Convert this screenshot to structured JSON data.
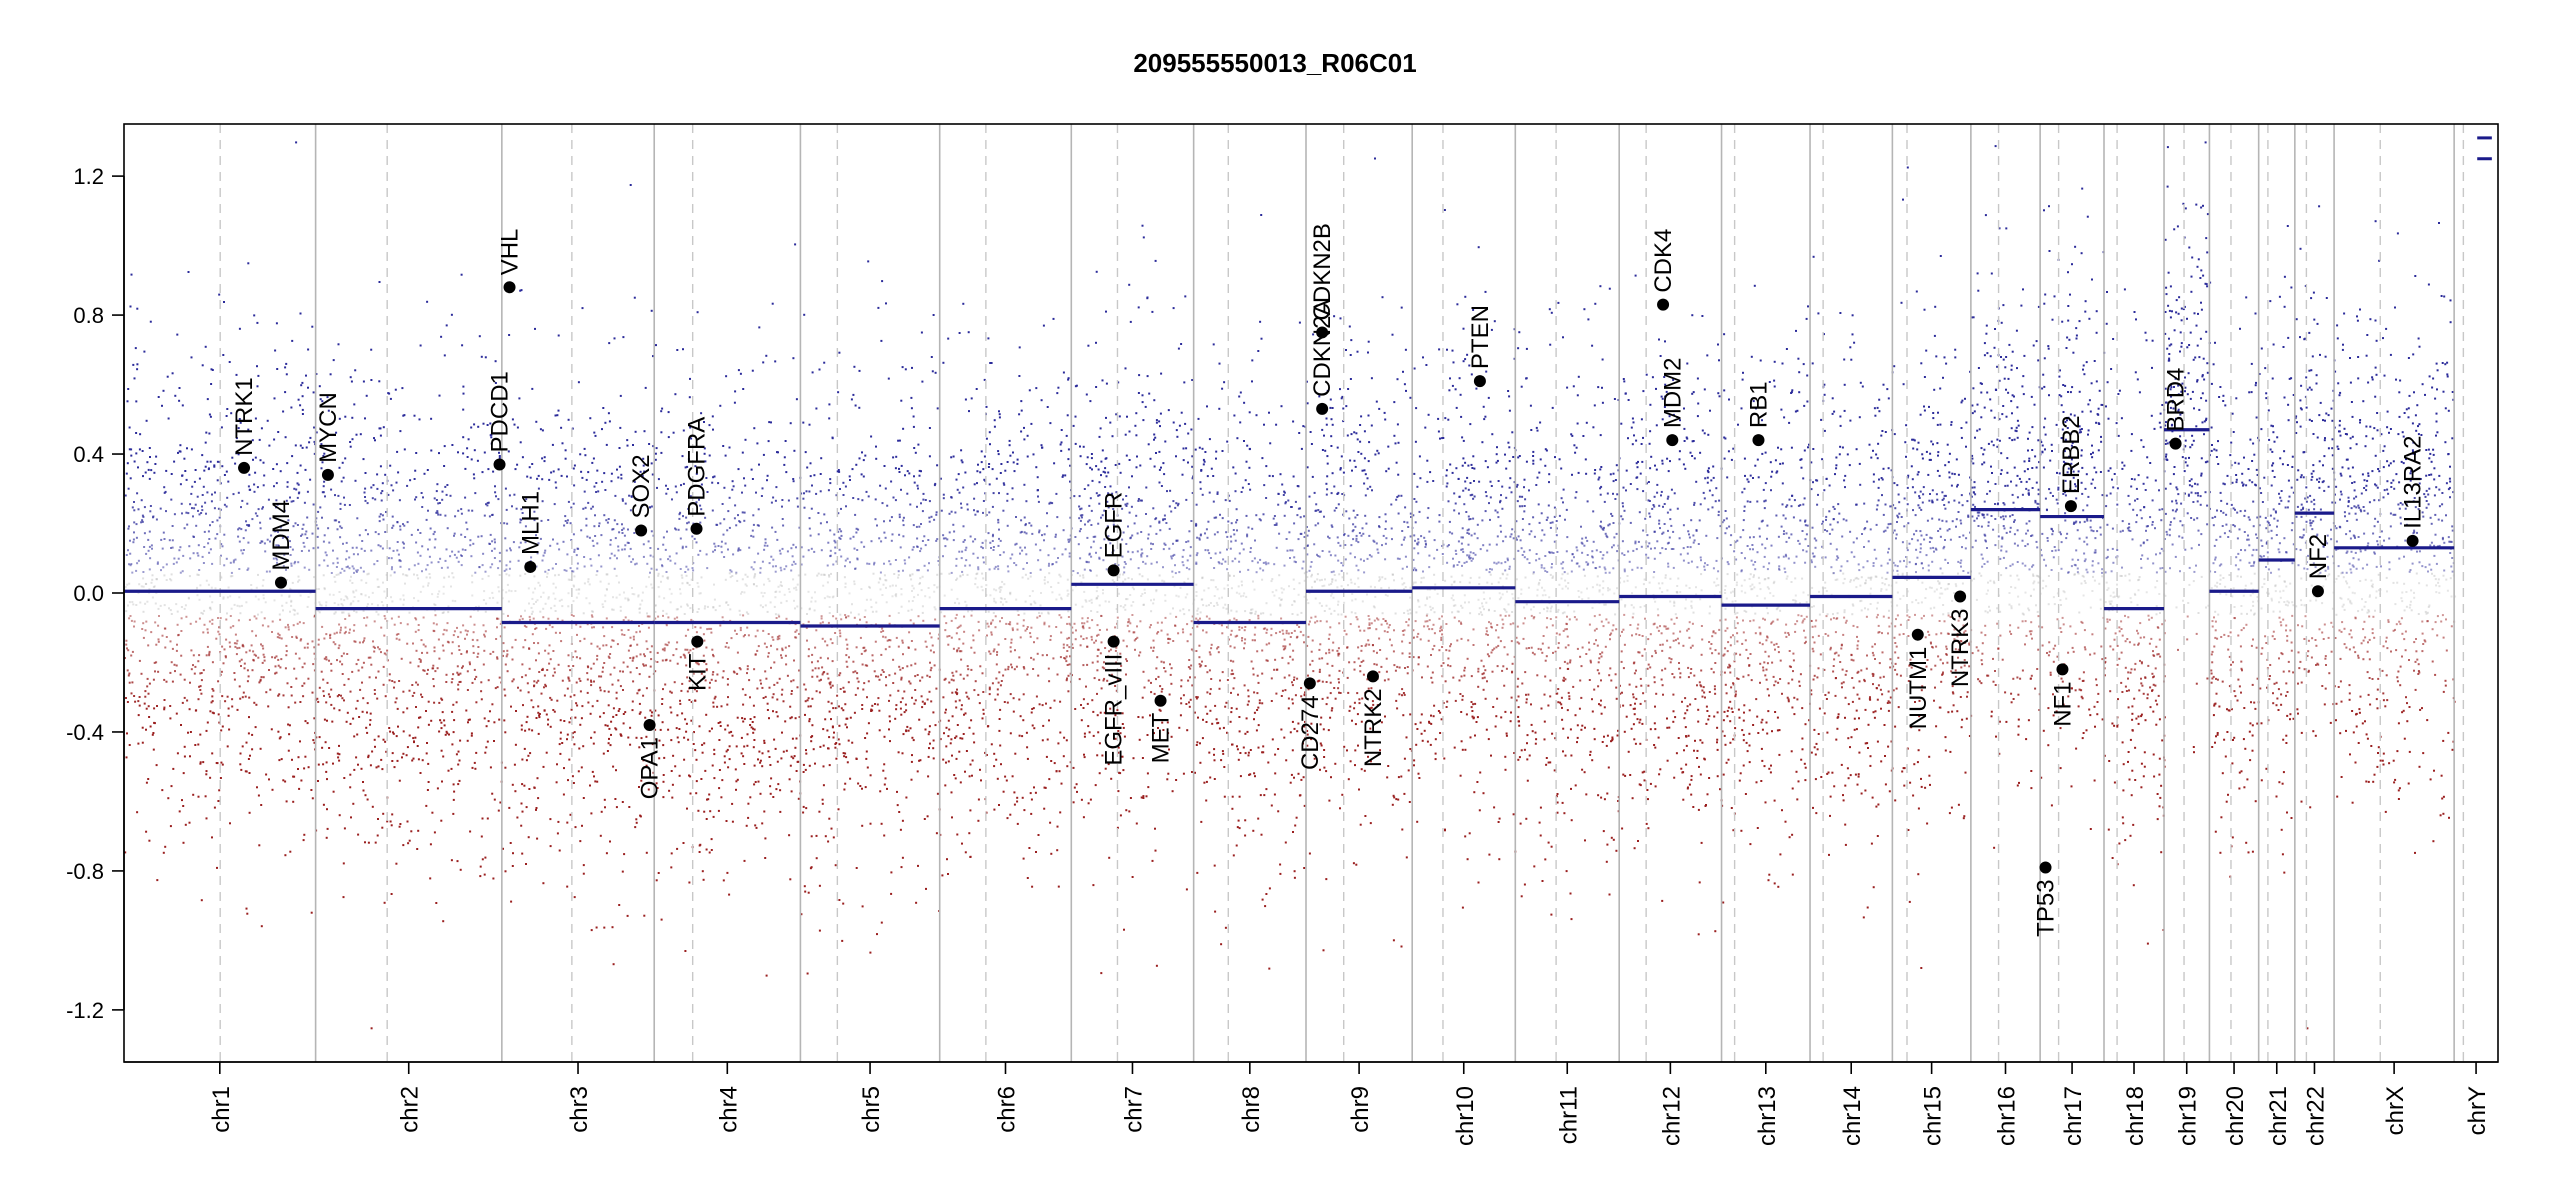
{
  "chart_data": {
    "type": "scatter",
    "title": "209555550013_R06C01",
    "ylim": [
      -1.35,
      1.35
    ],
    "y_ticks": [
      -1.2,
      -0.8,
      -0.4,
      0.0,
      0.4,
      0.8,
      1.2
    ],
    "y_tick_labels": [
      "-1.2",
      "-0.8",
      "-0.4",
      "0.0",
      "0.4",
      "0.8",
      "1.2"
    ],
    "grid": false,
    "point_colors": {
      "gain": "#2b2b9a",
      "loss": "#9a1f1f",
      "neutral": "#b9b9b9"
    },
    "segment_color": "#1a1a8a",
    "chromosomes": [
      {
        "name": "chr1",
        "start": 0,
        "end": 249,
        "centromere": 125,
        "segment": 0.005
      },
      {
        "name": "chr2",
        "start": 249,
        "end": 491,
        "centromere": 342,
        "segment": -0.045
      },
      {
        "name": "chr3",
        "start": 491,
        "end": 689,
        "centromere": 582,
        "segment": -0.085
      },
      {
        "name": "chr4",
        "start": 689,
        "end": 879,
        "centromere": 739,
        "segment": -0.085
      },
      {
        "name": "chr5",
        "start": 879,
        "end": 1060,
        "centromere": 927,
        "segment": -0.095
      },
      {
        "name": "chr6",
        "start": 1060,
        "end": 1231,
        "centromere": 1120,
        "segment": -0.045
      },
      {
        "name": "chr7",
        "start": 1231,
        "end": 1390,
        "centromere": 1291,
        "segment": 0.025
      },
      {
        "name": "chr8",
        "start": 1390,
        "end": 1536,
        "centromere": 1435,
        "segment": -0.085
      },
      {
        "name": "chr9",
        "start": 1536,
        "end": 1674,
        "centromere": 1585,
        "segment": 0.005
      },
      {
        "name": "chr10",
        "start": 1674,
        "end": 1808,
        "centromere": 1714,
        "segment": 0.015
      },
      {
        "name": "chr11",
        "start": 1808,
        "end": 1943,
        "centromere": 1861,
        "segment": -0.025
      },
      {
        "name": "chr12",
        "start": 1943,
        "end": 2076,
        "centromere": 1978,
        "segment": -0.01
      },
      {
        "name": "chr13",
        "start": 2076,
        "end": 2191,
        "centromere": 2093,
        "segment": -0.035
      },
      {
        "name": "chr14",
        "start": 2191,
        "end": 2298,
        "centromere": 2208,
        "segment": -0.01
      },
      {
        "name": "chr15",
        "start": 2298,
        "end": 2400,
        "centromere": 2317,
        "segment": 0.045
      },
      {
        "name": "chr16",
        "start": 2400,
        "end": 2490,
        "centromere": 2436,
        "segment": 0.24
      },
      {
        "name": "chr17",
        "start": 2490,
        "end": 2573,
        "centromere": 2514,
        "segment": 0.22
      },
      {
        "name": "chr18",
        "start": 2573,
        "end": 2651,
        "centromere": 2590,
        "segment": -0.045
      },
      {
        "name": "chr19",
        "start": 2651,
        "end": 2710,
        "centromere": 2677,
        "segment": 0.47
      },
      {
        "name": "chr20",
        "start": 2710,
        "end": 2774,
        "centromere": 2738,
        "segment": 0.005
      },
      {
        "name": "chr21",
        "start": 2774,
        "end": 2821,
        "centromere": 2786,
        "segment": 0.095
      },
      {
        "name": "chr22",
        "start": 2821,
        "end": 2872,
        "centromere": 2836,
        "segment": 0.23
      },
      {
        "name": "chrX",
        "start": 2872,
        "end": 3028,
        "centromere": 2932,
        "segment": 0.13
      },
      {
        "name": "chrY",
        "start": 3028,
        "end": 3085,
        "centromere": 3040,
        "segment": null
      }
    ],
    "chrY_marks": [
      1.31,
      1.25
    ],
    "genes": [
      {
        "name": "NTRK1",
        "pos": 156,
        "value": 0.36,
        "label_side": "above"
      },
      {
        "name": "MDM4",
        "pos": 204,
        "value": 0.03,
        "label_side": "above"
      },
      {
        "name": "MYCN",
        "pos": 265,
        "value": 0.34,
        "label_side": "above"
      },
      {
        "name": "PDCD1",
        "pos": 488,
        "value": 0.37,
        "label_side": "above"
      },
      {
        "name": "VHL",
        "pos": 501,
        "value": 0.88,
        "label_side": "above"
      },
      {
        "name": "MLH1",
        "pos": 528,
        "value": 0.075,
        "label_side": "above"
      },
      {
        "name": "SOX2",
        "pos": 672,
        "value": 0.18,
        "label_side": "above"
      },
      {
        "name": "OPA1",
        "pos": 683,
        "value": -0.38,
        "label_side": "below"
      },
      {
        "name": "PDGFRA",
        "pos": 744,
        "value": 0.185,
        "label_side": "above"
      },
      {
        "name": "KIT",
        "pos": 745,
        "value": -0.14,
        "label_side": "below"
      },
      {
        "name": "EGFR",
        "pos": 1286,
        "value": 0.065,
        "label_side": "above"
      },
      {
        "name": "EGFR_vIII",
        "pos": 1286,
        "value": -0.14,
        "label_side": "below"
      },
      {
        "name": "MET",
        "pos": 1347,
        "value": -0.31,
        "label_side": "below"
      },
      {
        "name": "CD274",
        "pos": 1541,
        "value": -0.26,
        "label_side": "below"
      },
      {
        "name": "CDKN2A",
        "pos": 1557,
        "value": 0.53,
        "label_side": "above"
      },
      {
        "name": "CDKN2B",
        "pos": 1557,
        "value": 0.75,
        "label_side": "above"
      },
      {
        "name": "NTRK2",
        "pos": 1623,
        "value": -0.24,
        "label_side": "below"
      },
      {
        "name": "PTEN",
        "pos": 1762,
        "value": 0.61,
        "label_side": "above"
      },
      {
        "name": "CDK4",
        "pos": 2000,
        "value": 0.83,
        "label_side": "above"
      },
      {
        "name": "MDM2",
        "pos": 2012,
        "value": 0.44,
        "label_side": "above"
      },
      {
        "name": "RB1",
        "pos": 2124,
        "value": 0.44,
        "label_side": "above"
      },
      {
        "name": "NUTM1",
        "pos": 2331,
        "value": -0.12,
        "label_side": "below"
      },
      {
        "name": "NTRK3",
        "pos": 2386,
        "value": -0.01,
        "label_side": "below"
      },
      {
        "name": "TP53",
        "pos": 2497,
        "value": -0.79,
        "label_side": "below"
      },
      {
        "name": "NF1",
        "pos": 2519,
        "value": -0.22,
        "label_side": "below"
      },
      {
        "name": "ERBB2",
        "pos": 2530,
        "value": 0.25,
        "label_side": "above"
      },
      {
        "name": "BRD4",
        "pos": 2666,
        "value": 0.43,
        "label_side": "above"
      },
      {
        "name": "NF2",
        "pos": 2851,
        "value": 0.005,
        "label_side": "above"
      },
      {
        "name": "IL13RA2",
        "pos": 2974,
        "value": 0.15,
        "label_side": "above"
      }
    ]
  }
}
